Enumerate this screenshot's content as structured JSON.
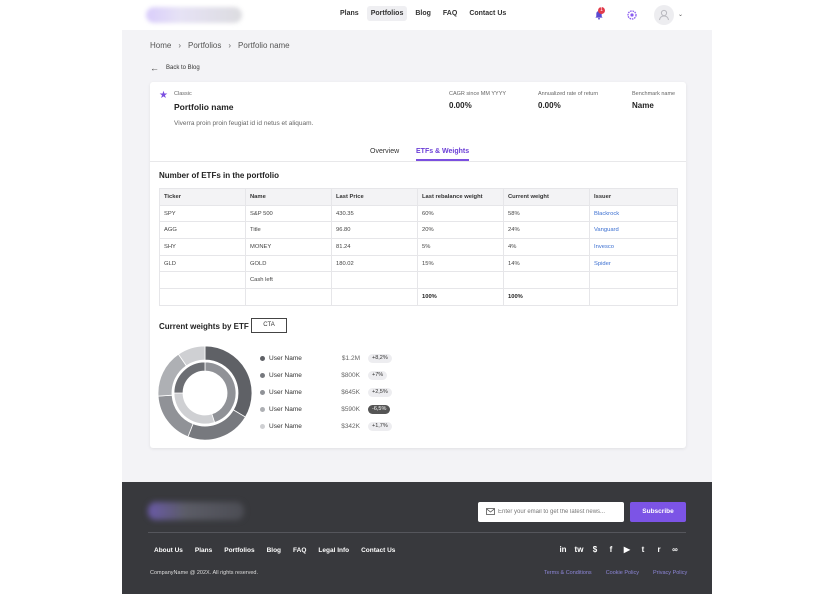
{
  "header": {
    "nav": [
      {
        "label": "Plans"
      },
      {
        "label": "Portfolios"
      },
      {
        "label": "Blog"
      },
      {
        "label": "FAQ"
      },
      {
        "label": "Contact Us"
      }
    ],
    "active_nav": "Portfolios",
    "notification_count": "1"
  },
  "breadcrumb": [
    "Home",
    "Portfolios",
    "Portfolio name"
  ],
  "back_label": "Back to Blog",
  "portfolio": {
    "class": "Classic",
    "name": "Portfolio name",
    "description": "Viverra proin proin feugiat id id netus et aliquam.",
    "stats": [
      {
        "label": "CAGR since MM YYYY",
        "value": "0.00%"
      },
      {
        "label": "Annualized rate of return",
        "value": "0.00%"
      },
      {
        "label": "Benchmark name",
        "value": "Name"
      }
    ]
  },
  "tabs": [
    {
      "label": "Overview"
    },
    {
      "label": "ETFs & Weights"
    }
  ],
  "table_section": {
    "title": "Number of ETFs in the portfolio",
    "columns": [
      "Ticker",
      "Name",
      "Last Price",
      "Last rebalance weight",
      "Current weight",
      "Issuer"
    ],
    "rows": [
      [
        "SPY",
        "S&P 500",
        "430.35",
        "60%",
        "58%",
        "Blackrock"
      ],
      [
        "AGG",
        "Title",
        "96.80",
        "20%",
        "24%",
        "Vanguard"
      ],
      [
        "SHY",
        "MONEY",
        "81.24",
        "5%",
        "4%",
        "Invesco"
      ],
      [
        "GLD",
        "GOLD",
        "180.02",
        "15%",
        "14%",
        "Spider"
      ],
      [
        "",
        "Cash left",
        "",
        "",
        "",
        ""
      ],
      [
        "",
        "",
        "",
        "100%",
        "100%",
        ""
      ]
    ]
  },
  "weights_section": {
    "title": "Current weights by ETF",
    "cta_label": "CTA",
    "legend": [
      {
        "name": "User Name",
        "value": "$1.2M",
        "change": "+8,2%",
        "color": "#5f6166"
      },
      {
        "name": "User Name",
        "value": "$800K",
        "change": "+7%",
        "color": "#77797e"
      },
      {
        "name": "User Name",
        "value": "$645K",
        "change": "+2,5%",
        "color": "#909297"
      },
      {
        "name": "User Name",
        "value": "$590K",
        "change": "-6,5%",
        "color": "#aeb0b4"
      },
      {
        "name": "User Name",
        "value": "$342K",
        "change": "+1,7%",
        "color": "#cfd0d3"
      }
    ]
  },
  "chart_data": {
    "type": "pie",
    "style": "double-donut",
    "categories": [
      "User Name",
      "User Name",
      "User Name",
      "User Name",
      "User Name"
    ],
    "values": [
      1200000,
      800000,
      645000,
      590000,
      342000
    ],
    "colors": [
      "#5f6166",
      "#77797e",
      "#909297",
      "#aeb0b4",
      "#cfd0d3"
    ],
    "inner_ring_values": [
      45,
      30,
      25
    ],
    "inner_ring_colors": [
      "#909297",
      "#cfd0d3",
      "#6c6e73"
    ],
    "legend": "right"
  },
  "footer": {
    "email_placeholder": "Enter your email to get the latest news...",
    "subscribe_label": "Subscribe",
    "links": [
      "About Us",
      "Plans",
      "Portfolios",
      "Blog",
      "FAQ",
      "Legal Info",
      "Contact Us"
    ],
    "socials": [
      "in",
      "tw",
      "$",
      "f",
      "▶",
      "t",
      "r",
      "∞"
    ],
    "copyright": "CompanyName @ 202X. All rights reserved.",
    "legal": [
      "Terms & Conditions",
      "Cookie Policy",
      "Privacy Policy"
    ]
  }
}
